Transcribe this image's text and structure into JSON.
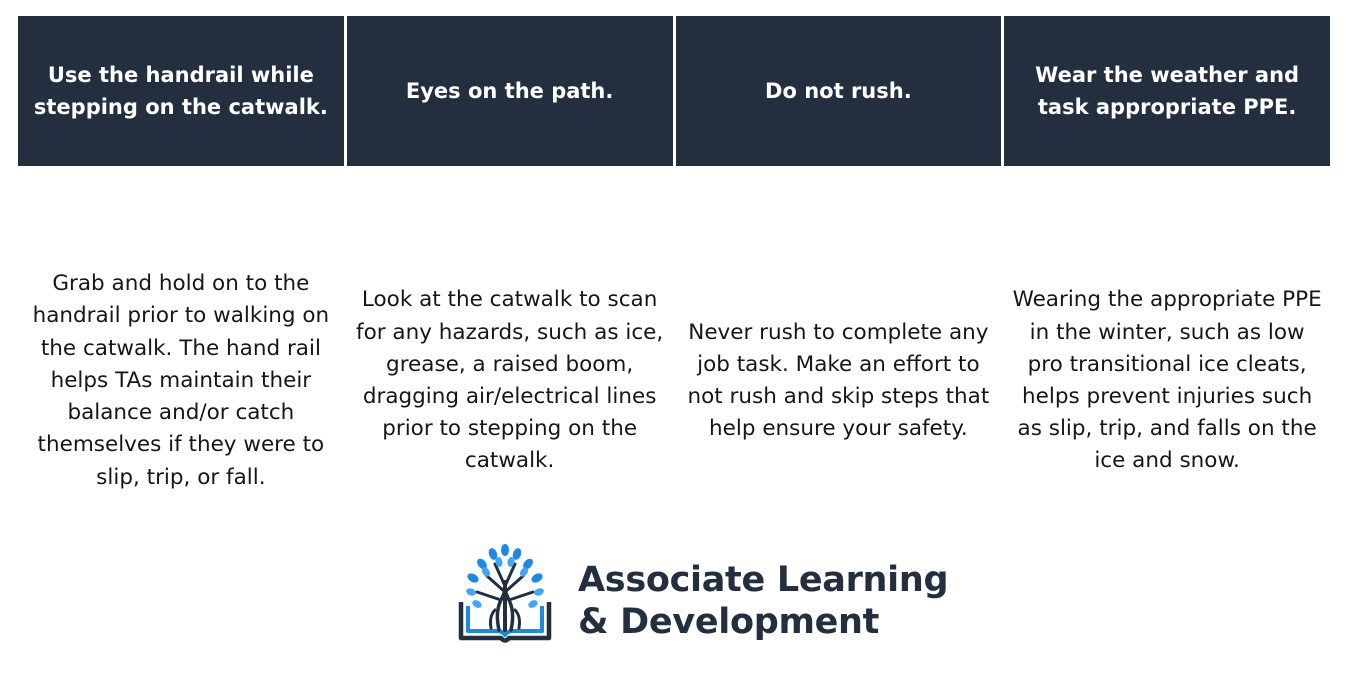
{
  "columns": [
    {
      "heading": "Use the handrail while stepping on the catwalk.",
      "body": "Grab and hold on to the handrail prior to walking on the catwalk. The hand rail helps TAs maintain their balance and/or catch themselves if they were to slip, trip, or fall."
    },
    {
      "heading": "Eyes on the path.",
      "body": "Look at the catwalk to scan for any hazards, such as ice, grease, a raised boom, dragging air/electrical lines prior to stepping on the catwalk."
    },
    {
      "heading": "Do not rush.",
      "body": "Never rush to complete any job task. Make an effort to not rush and skip steps that help ensure your safety."
    },
    {
      "heading": "Wear the weather and task appropriate PPE.",
      "body": "Wearing the appropriate PPE in the winter, such as low pro transitional ice cleats, helps prevent injuries such as slip, trip, and falls on the ice and snow."
    }
  ],
  "logo": {
    "line1": "Associate Learning",
    "line2": "& Development",
    "icon": "tree-book-icon"
  },
  "colors": {
    "header_bg": "#232f3e",
    "header_text": "#ffffff",
    "body_text": "#161616",
    "logo_text": "#232f3e",
    "logo_leaf_blue": "#1e88e5",
    "logo_leaf_light": "#42a5f5"
  }
}
